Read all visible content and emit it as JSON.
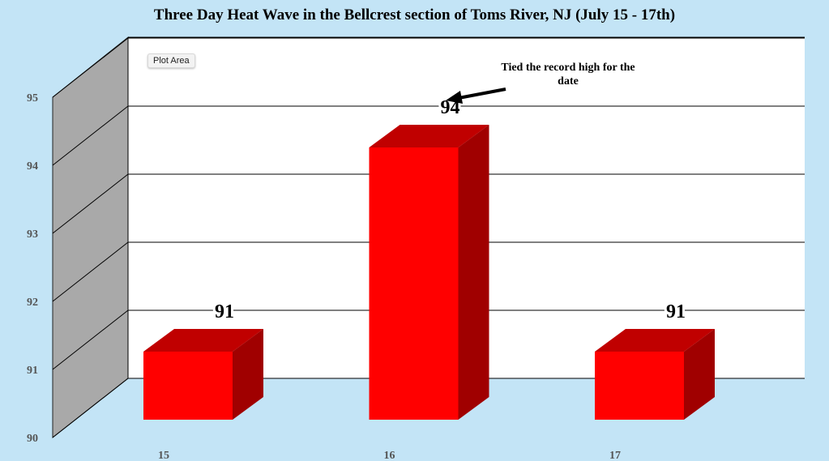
{
  "chart_data": {
    "type": "bar",
    "title": "Three Day Heat Wave in the Bellcrest section of Toms River, NJ (July 15 - 17th)",
    "categories": [
      "15",
      "16",
      "17"
    ],
    "values": [
      91,
      94,
      91
    ],
    "data_labels": [
      "91",
      "94",
      "91"
    ],
    "yticks": [
      "90",
      "91",
      "92",
      "93",
      "94",
      "95"
    ],
    "ylim": [
      90,
      95
    ],
    "grid": true,
    "three_d": true,
    "annotation": "Tied the record high for the date",
    "colors": {
      "bar_front": "#ff0000",
      "bar_top": "#c00000",
      "bar_side": "#a00000",
      "wall": "#a9a9a9",
      "plot_bg": "#ffffff",
      "page_bg": "#c3e4f6"
    }
  },
  "ui": {
    "plot_area_tag": "Plot Area"
  }
}
